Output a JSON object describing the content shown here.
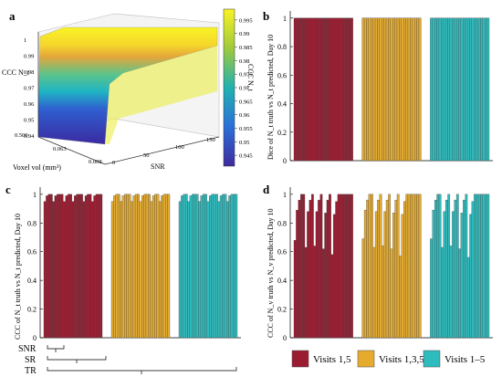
{
  "figure": {
    "colors": {
      "visits_1_5": "#9b1b30",
      "visits_1_3_5": "#e5ab2f",
      "visits_1_to_5": "#2ebcbe",
      "bar_edge": "#4a4a4a"
    }
  },
  "chart_data": [
    {
      "panel": "a",
      "type": "heatmap",
      "subtype": "3d-surface",
      "zlabel": "CCC N_t",
      "xlabel": "Voxel vol (mm³)",
      "ylabel": "SNR",
      "x_ticks": [
        "0.500",
        "0.063",
        "0.008"
      ],
      "y_ticks": [
        "0",
        "50",
        "100",
        "150"
      ],
      "z_ticks": [
        "0.94",
        "0.95",
        "0.96",
        "0.97",
        "0.98",
        "0.99",
        "1"
      ],
      "colorbar_label": "CCC N_t",
      "colorbar_ticks": [
        "0.945",
        "0.95",
        "0.955",
        "0.96",
        "0.965",
        "0.97",
        "0.975",
        "0.98",
        "0.985",
        "0.99",
        "0.995"
      ],
      "colorbar_range": [
        0.941,
        0.999
      ]
    },
    {
      "panel": "b",
      "type": "bar",
      "ylabel": "Dice of N_t truth vs N_t predicted, Day 10",
      "ylim": [
        0,
        1.05
      ],
      "y_ticks": [
        "0",
        "0.2",
        "0.4",
        "0.6",
        "0.8",
        "1"
      ],
      "series": [
        {
          "name": "Visits 1,5",
          "values": [
            1,
            1,
            1,
            1,
            1,
            1,
            1,
            1,
            1,
            1,
            1,
            1,
            1,
            1,
            1,
            1,
            1,
            1,
            1,
            1,
            1,
            1,
            1,
            1,
            1,
            1,
            1
          ]
        },
        {
          "name": "Visits 1,3,5",
          "values": [
            1,
            1,
            1,
            1,
            1,
            1,
            1,
            1,
            1,
            1,
            1,
            1,
            1,
            1,
            1,
            1,
            1,
            1,
            1,
            1,
            1,
            1,
            1,
            1,
            1,
            1,
            1
          ]
        },
        {
          "name": "Visits 1–5",
          "values": [
            1,
            1,
            1,
            1,
            1,
            1,
            1,
            1,
            1,
            1,
            1,
            1,
            1,
            1,
            1,
            1,
            1,
            1,
            1,
            1,
            1,
            1,
            1,
            1,
            1,
            1,
            1
          ]
        }
      ]
    },
    {
      "panel": "c",
      "type": "bar",
      "ylabel": "CCC of N_t truth vs N_t predicted, Day 10",
      "ylim": [
        0,
        1.05
      ],
      "y_ticks": [
        "0",
        "0.2",
        "0.4",
        "0.6",
        "0.8",
        "1"
      ],
      "series": [
        {
          "name": "Visits 1,5",
          "values": [
            0.95,
            0.99,
            1,
            1,
            0.95,
            0.99,
            1,
            1,
            1,
            0.95,
            0.99,
            1,
            1,
            0.95,
            0.99,
            1,
            1,
            1,
            0.95,
            0.99,
            1,
            1,
            0.95,
            0.99,
            1,
            1,
            1
          ]
        },
        {
          "name": "Visits 1,3,5",
          "values": [
            0.95,
            0.99,
            1,
            1,
            0.95,
            0.99,
            1,
            1,
            1,
            0.95,
            0.99,
            1,
            1,
            0.95,
            0.99,
            1,
            1,
            1,
            0.95,
            0.99,
            1,
            1,
            0.95,
            0.99,
            1,
            1,
            1
          ]
        },
        {
          "name": "Visits 1–5",
          "values": [
            0.95,
            0.99,
            1,
            1,
            0.95,
            0.99,
            1,
            1,
            1,
            0.95,
            0.99,
            1,
            1,
            0.95,
            0.99,
            1,
            1,
            1,
            0.95,
            0.99,
            1,
            1,
            0.95,
            0.99,
            1,
            1,
            1
          ]
        }
      ]
    },
    {
      "panel": "d",
      "type": "bar",
      "ylabel": "CCC of N_v truth vs N_v predicted, Day 10",
      "ylim": [
        0,
        1.05
      ],
      "y_ticks": [
        "0",
        "0.2",
        "0.4",
        "0.6",
        "0.8",
        "1"
      ],
      "series": [
        {
          "name": "Visits 1,5",
          "values": [
            0.68,
            0.89,
            0.96,
            1,
            1,
            0.63,
            0.88,
            0.96,
            1,
            0.64,
            0.88,
            0.96,
            1,
            0.62,
            0.87,
            0.96,
            1,
            0.58,
            0.86,
            0.95,
            1,
            1,
            1,
            1,
            1,
            1,
            1
          ]
        },
        {
          "name": "Visits 1,3,5",
          "values": [
            0.69,
            0.89,
            0.96,
            1,
            1,
            0.63,
            0.88,
            0.96,
            1,
            0.64,
            0.88,
            0.96,
            1,
            0.62,
            0.87,
            0.96,
            1,
            0.57,
            0.86,
            0.95,
            1,
            1,
            1,
            1,
            1,
            1,
            1
          ]
        },
        {
          "name": "Visits 1–5",
          "values": [
            0.69,
            0.89,
            0.96,
            1,
            1,
            0.63,
            0.88,
            0.96,
            1,
            0.64,
            0.88,
            0.96,
            1,
            0.62,
            0.87,
            0.96,
            1,
            0.56,
            0.86,
            0.95,
            1,
            1,
            1,
            1,
            1,
            1,
            1
          ]
        }
      ]
    }
  ],
  "panel_labels": {
    "a": "a",
    "b": "b",
    "c": "c",
    "d": "d"
  },
  "brackets": {
    "snr": "SNR",
    "sr": "SR",
    "tr": "TR"
  },
  "legend": [
    "Visits 1,5",
    "Visits 1,3,5",
    "Visits 1–5"
  ]
}
